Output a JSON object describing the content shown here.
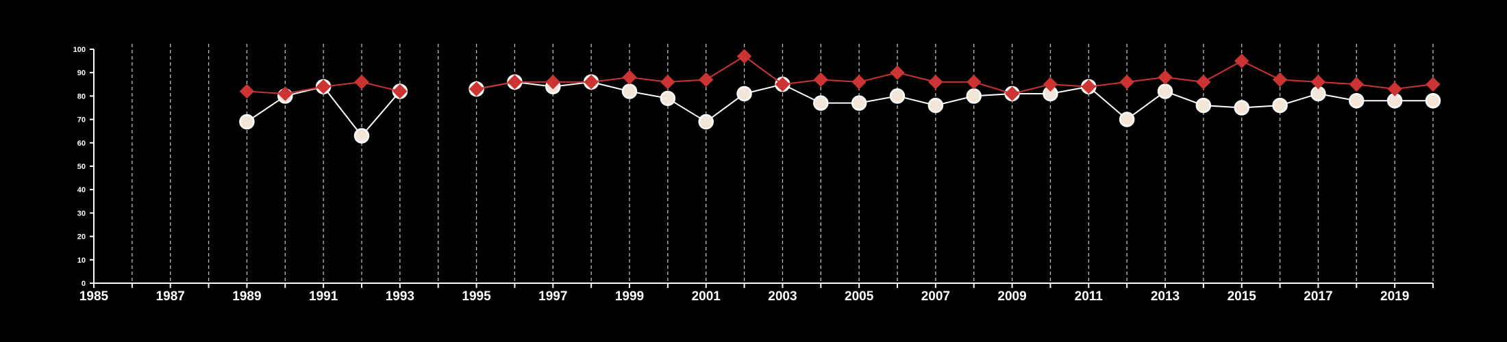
{
  "chart_data": {
    "type": "line",
    "title": "",
    "xlabel": "",
    "ylabel": "",
    "xlim": [
      1985,
      2020
    ],
    "ylim": [
      0,
      100
    ],
    "x_ticks": [
      1985,
      1987,
      1989,
      1991,
      1993,
      1995,
      1997,
      1999,
      2001,
      2003,
      2005,
      2007,
      2009,
      2011,
      2013,
      2015,
      2017,
      2019
    ],
    "x_tick_labels": [
      "1985",
      "1987",
      "1989",
      "1991",
      "1993",
      "1995",
      "1997",
      "1999",
      "2001",
      "2003",
      "2005",
      "2007",
      "2009",
      "2011",
      "2013",
      "2015",
      "2017",
      "2019"
    ],
    "y_ticks": [
      0,
      10,
      20,
      30,
      40,
      50,
      60,
      70,
      80,
      90,
      100
    ],
    "y_tick_labels": [
      "0",
      "10",
      "20",
      "30",
      "40",
      "50",
      "60",
      "70",
      "80",
      "90",
      "100"
    ],
    "grid": "vertical dashed lines at every year",
    "legend": "none",
    "series": [
      {
        "marker": "diamond",
        "color": "#cc3333",
        "points": [
          [
            1989,
            82
          ],
          [
            1990,
            81
          ],
          [
            1991,
            84
          ],
          [
            1992,
            86
          ],
          [
            1993,
            82
          ],
          [
            1995,
            83
          ],
          [
            1996,
            86
          ],
          [
            1997,
            86
          ],
          [
            1998,
            86
          ],
          [
            1999,
            88
          ],
          [
            2000,
            86
          ],
          [
            2001,
            87
          ],
          [
            2002,
            97
          ],
          [
            2003,
            85
          ],
          [
            2004,
            87
          ],
          [
            2005,
            86
          ],
          [
            2006,
            90
          ],
          [
            2007,
            86
          ],
          [
            2008,
            86
          ],
          [
            2009,
            81
          ],
          [
            2010,
            85
          ],
          [
            2011,
            84
          ],
          [
            2012,
            86
          ],
          [
            2013,
            88
          ],
          [
            2014,
            86
          ],
          [
            2015,
            95
          ],
          [
            2016,
            87
          ],
          [
            2017,
            86
          ],
          [
            2018,
            85
          ],
          [
            2019,
            83
          ],
          [
            2020,
            85
          ]
        ]
      },
      {
        "marker": "circle",
        "color": "#ffffff",
        "fill": "#f3e6d8",
        "points": [
          [
            1989,
            69
          ],
          [
            1990,
            80
          ],
          [
            1991,
            84
          ],
          [
            1992,
            63
          ],
          [
            1993,
            82
          ],
          [
            1995,
            83
          ],
          [
            1996,
            86
          ],
          [
            1997,
            84
          ],
          [
            1998,
            86
          ],
          [
            1999,
            82
          ],
          [
            2000,
            79
          ],
          [
            2001,
            69
          ],
          [
            2002,
            81
          ],
          [
            2003,
            85
          ],
          [
            2004,
            77
          ],
          [
            2005,
            77
          ],
          [
            2006,
            80
          ],
          [
            2007,
            76
          ],
          [
            2008,
            80
          ],
          [
            2009,
            81
          ],
          [
            2010,
            81
          ],
          [
            2011,
            84
          ],
          [
            2012,
            70
          ],
          [
            2013,
            82
          ],
          [
            2014,
            76
          ],
          [
            2015,
            75
          ],
          [
            2016,
            76
          ],
          [
            2017,
            81
          ],
          [
            2018,
            78
          ],
          [
            2019,
            78
          ],
          [
            2020,
            78
          ]
        ]
      }
    ]
  }
}
